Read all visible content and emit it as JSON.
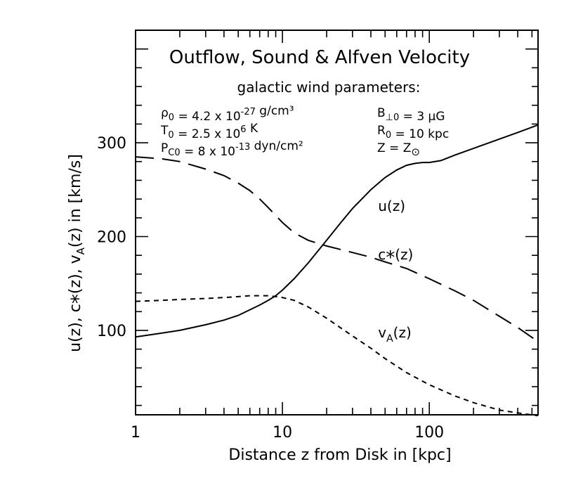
{
  "chart_data": {
    "type": "line",
    "title": "Outflow, Sound & Alfven Velocity",
    "subtitle": "galactic wind parameters:",
    "xlabel": "Distance z from Disk in [kpc]",
    "ylabel": "u(z), c*(z), vA(z) in [km/s]",
    "x_scale": "log",
    "xlim": [
      1,
      550
    ],
    "ylim": [
      10,
      420
    ],
    "x_ticks": [
      {
        "value": 1,
        "label": "1"
      },
      {
        "value": 10,
        "label": "10"
      },
      {
        "value": 100,
        "label": "100"
      }
    ],
    "y_ticks": [
      {
        "value": 100,
        "label": "100"
      },
      {
        "value": 200,
        "label": "200"
      },
      {
        "value": 300,
        "label": "300"
      }
    ],
    "grid": false,
    "parameters_left": [
      {
        "sym": "ρ",
        "sub": "0",
        "text": " = 4.2 x 10",
        "sup": "-27",
        "tail": " g/cm³"
      },
      {
        "sym": "T",
        "sub": "0",
        "text": " = 2.5 x 10",
        "sup": "6",
        "tail": " K"
      },
      {
        "sym": "P",
        "sub": "C0",
        "text": " =  8 x 10",
        "sup": "-13",
        "tail": " dyn/cm²"
      }
    ],
    "parameters_right": [
      {
        "sym": "B",
        "sub": "⊥0",
        "text": " =  3 μG",
        "sup": "",
        "tail": ""
      },
      {
        "sym": "R",
        "sub": "0",
        "text": " = 10 kpc",
        "sup": "",
        "tail": ""
      },
      {
        "sym": "Z",
        "sub": "",
        "text": "   =  Z",
        "sup": "",
        "tail": "",
        "sun_symbol": "⊙"
      }
    ],
    "series": [
      {
        "name": "u(z)",
        "label_main": "u(z)",
        "label_sub": "",
        "label_tail": "",
        "label_at": {
          "x": 50,
          "y": 232
        },
        "dash": "solid",
        "x": [
          1,
          1.5,
          2,
          3,
          4,
          5,
          6,
          7,
          8,
          9,
          10,
          12,
          15,
          20,
          25,
          30,
          40,
          50,
          60,
          70,
          80,
          90,
          100,
          120,
          150,
          200,
          300,
          400,
          550
        ],
        "y": [
          93,
          97,
          100,
          106,
          111,
          116,
          122,
          127,
          132,
          137,
          143,
          155,
          172,
          196,
          215,
          230,
          250,
          263,
          271,
          276,
          278,
          279,
          279,
          281,
          287,
          294,
          304,
          311,
          319
        ]
      },
      {
        "name": "c*(z)",
        "label_main": "c",
        "label_sub": "*",
        "label_tail": "(z)",
        "label_at": {
          "x": 50,
          "y": 180
        },
        "dash": "long",
        "x": [
          1,
          1.5,
          2,
          3,
          4,
          5,
          6,
          7,
          8,
          10,
          12,
          15,
          20,
          30,
          40,
          50,
          70,
          100,
          150,
          200,
          300,
          400,
          550
        ],
        "y": [
          285,
          283,
          280,
          272,
          265,
          257,
          249,
          240,
          231,
          215,
          204,
          196,
          190,
          183,
          178,
          173,
          166,
          155,
          142,
          132,
          115,
          103,
          88
        ]
      },
      {
        "name": "vA(z)",
        "label_main": "v",
        "label_sub": "A",
        "label_tail": "(z)",
        "label_at": {
          "x": 50,
          "y": 97
        },
        "dash": "short",
        "x": [
          1,
          1.5,
          2,
          3,
          4,
          5,
          6,
          7,
          8,
          9,
          10,
          12,
          15,
          20,
          30,
          40,
          50,
          70,
          100,
          150,
          200,
          300,
          400,
          550
        ],
        "y": [
          131,
          132,
          133,
          134,
          135,
          136,
          137,
          137,
          137,
          136,
          135,
          132,
          125,
          113,
          94,
          81,
          70,
          55,
          42,
          30,
          23,
          15,
          12,
          9
        ]
      }
    ]
  }
}
